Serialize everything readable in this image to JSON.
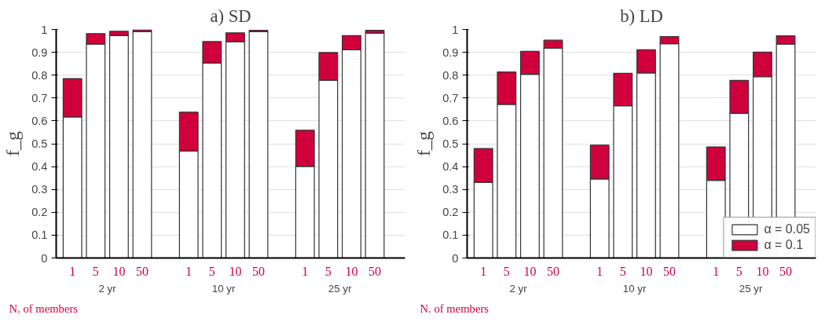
{
  "chart_data": [
    {
      "type": "bar",
      "title": "a) SD",
      "ylabel": "f_g",
      "xlabel": "N. of members",
      "stacked": true,
      "legend": false,
      "grid": "y",
      "categories": [
        "1",
        "5",
        "10",
        "50",
        null,
        "1",
        "5",
        "10",
        "50",
        null,
        "1",
        "5",
        "10",
        "50"
      ],
      "annotations": [
        "2 yr",
        "10 yr",
        "25 yr"
      ],
      "ylim": [
        0,
        1
      ],
      "yticks": [
        0,
        0.1,
        0.2,
        0.3,
        0.4,
        0.5,
        0.6,
        0.7,
        0.8,
        0.9,
        1
      ],
      "series": [
        {
          "color": "#ffffff",
          "values": [
            0.617,
            0.936,
            0.973,
            0.99,
            null,
            0.468,
            0.853,
            0.946,
            0.99,
            null,
            0.401,
            0.778,
            0.911,
            0.984
          ]
        },
        {
          "color": "#d0003c",
          "values": [
            0.168,
            0.046,
            0.019,
            0.008,
            null,
            0.17,
            0.094,
            0.039,
            0.006,
            null,
            0.158,
            0.121,
            0.062,
            0.012
          ]
        }
      ]
    },
    {
      "type": "bar",
      "title": "b) LD",
      "ylabel": "f_g",
      "xlabel": "N. of members",
      "stacked": true,
      "legend": "bottom right",
      "grid": "y",
      "categories": [
        "1",
        "5",
        "10",
        "50",
        null,
        "1",
        "5",
        "10",
        "50",
        null,
        "1",
        "5",
        "10",
        "50"
      ],
      "annotations": [
        "2 yr",
        "10 yr",
        "25 yr"
      ],
      "ylim": [
        0,
        1
      ],
      "yticks": [
        0,
        0.1,
        0.2,
        0.3,
        0.4,
        0.5,
        0.6,
        0.7,
        0.8,
        0.9,
        1
      ],
      "series": [
        {
          "name": "α = 0.05",
          "color": "#ffffff",
          "values": [
            0.331,
            0.672,
            0.804,
            0.918,
            null,
            0.346,
            0.666,
            0.81,
            0.938,
            null,
            0.34,
            0.633,
            0.793,
            0.936
          ]
        },
        {
          "name": "α = 0.1",
          "color": "#d0003c",
          "values": [
            0.148,
            0.142,
            0.1,
            0.035,
            null,
            0.148,
            0.142,
            0.101,
            0.031,
            null,
            0.146,
            0.144,
            0.108,
            0.036
          ]
        }
      ]
    }
  ]
}
